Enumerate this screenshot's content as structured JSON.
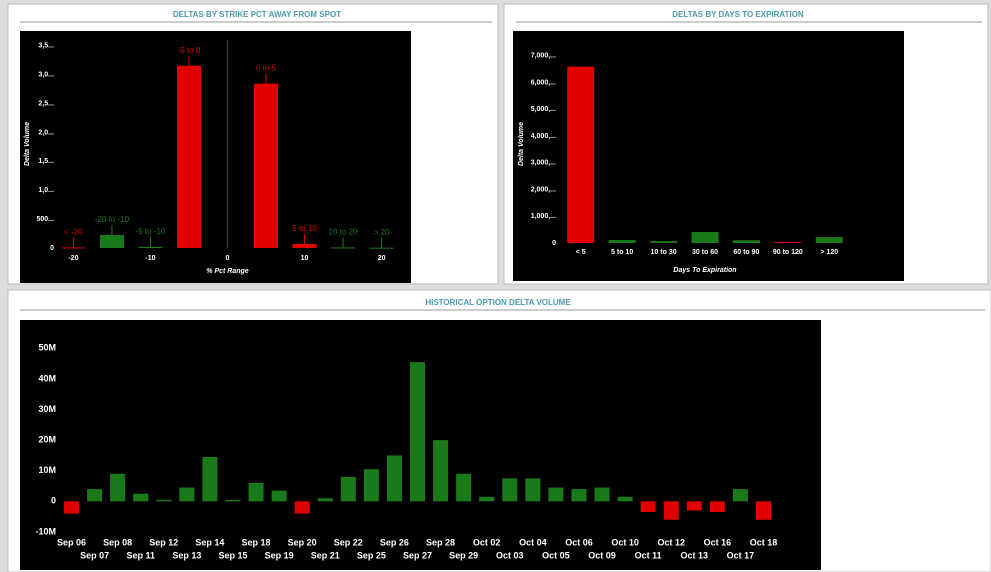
{
  "chart_data": [
    {
      "type": "bar",
      "title": "DELTAS BY STRIKE PCT AWAY FROM SPOT",
      "x_label": "% Pct Range",
      "y_label": "Delta Volume",
      "categories": [
        "< -20",
        "-20 to -10",
        "-5 to -10",
        "-5 to 0",
        "0 to 5",
        "5 to 10",
        "10 to 20",
        "> 20"
      ],
      "x": [
        -20,
        -15,
        -10,
        -5,
        5,
        10,
        15,
        20
      ],
      "values": [
        10,
        224,
        20,
        3155,
        2845,
        70,
        10,
        5
      ],
      "colors": [
        "#e00000",
        "#1a7a1a",
        "#1a7a1a",
        "#e00000",
        "#e00000",
        "#e00000",
        "#1a7a1a",
        "#1a7a1a"
      ],
      "data_labels": true,
      "xlim": [
        -22,
        22
      ],
      "xticks": [
        -20,
        -10,
        0,
        10,
        20
      ],
      "ylim": [
        0,
        3600
      ],
      "yticks": [
        0,
        {
          "value": 500,
          "label": "500..."
        },
        {
          "value": 1000,
          "label": "1,0..."
        },
        {
          "value": 1500,
          "label": "1,5..."
        },
        {
          "value": 2000,
          "label": "2,0..."
        },
        {
          "value": 2500,
          "label": "2,5..."
        },
        {
          "value": 3000,
          "label": "3,0..."
        },
        {
          "value": 3500,
          "label": "3,5..."
        }
      ]
    },
    {
      "type": "bar",
      "title": "DELTAS BY DAYS TO EXPIRATION",
      "x_label": "Days To Expiration",
      "y_label": "Delta Volume",
      "categories": [
        "< 5",
        "5 to 10",
        "10 to 30",
        "30 to 60",
        "60 to 90",
        "90 to 120",
        "> 120"
      ],
      "values": [
        6590,
        110,
        70,
        410,
        100,
        40,
        220
      ],
      "colors": [
        "#e00000",
        "#1a7a1a",
        "#1a7a1a",
        "#1a7a1a",
        "#1a7a1a",
        "#e00000",
        "#1a7a1a"
      ],
      "ylim": [
        0,
        7400
      ],
      "yticks": [
        0,
        {
          "value": 1000,
          "label": "1,000,..."
        },
        {
          "value": 2000,
          "label": "2,000,..."
        },
        {
          "value": 3000,
          "label": "3,000,..."
        },
        {
          "value": 4000,
          "label": "4,000,..."
        },
        {
          "value": 5000,
          "label": "5,000,..."
        },
        {
          "value": 6000,
          "label": "6,000,..."
        },
        {
          "value": 7000,
          "label": "7,000,..."
        }
      ]
    },
    {
      "type": "bar",
      "title": "HISTORICAL OPTION DELTA VOLUME",
      "categories": [
        "Sep 06",
        "Sep 07",
        "Sep 08",
        "Sep 11",
        "Sep 12",
        "Sep 13",
        "Sep 14",
        "Sep 15",
        "Sep 18",
        "Sep 19",
        "Sep 20",
        "Sep 21",
        "Sep 22",
        "Sep 25",
        "Sep 26",
        "Sep 27",
        "Sep 28",
        "Sep 29",
        "Oct 02",
        "Oct 03",
        "Oct 04",
        "Oct 05",
        "Oct 06",
        "Oct 09",
        "Oct 10",
        "Oct 11",
        "Oct 12",
        "Oct 13",
        "Oct 16",
        "Oct 17",
        "Oct 18"
      ],
      "values": [
        -4,
        4,
        9,
        2.5,
        0.5,
        4.5,
        14.5,
        0.5,
        6,
        3.5,
        -4,
        1,
        8,
        10.5,
        15,
        45.5,
        20,
        9,
        1.5,
        7.5,
        7.5,
        4.5,
        4,
        4.5,
        1.5,
        -3.5,
        -6,
        -3,
        -3.5,
        4,
        -6
      ],
      "positive_color": "#1a7a1a",
      "negative_color": "#e00000",
      "ylim": [
        -11,
        56
      ],
      "yticks": [
        {
          "value": -10,
          "label": "-10M"
        },
        0,
        {
          "value": 10,
          "label": "10M"
        },
        {
          "value": 20,
          "label": "20M"
        },
        {
          "value": 30,
          "label": "30M"
        },
        {
          "value": 40,
          "label": "40M"
        },
        {
          "value": 50,
          "label": "50M"
        }
      ]
    }
  ]
}
